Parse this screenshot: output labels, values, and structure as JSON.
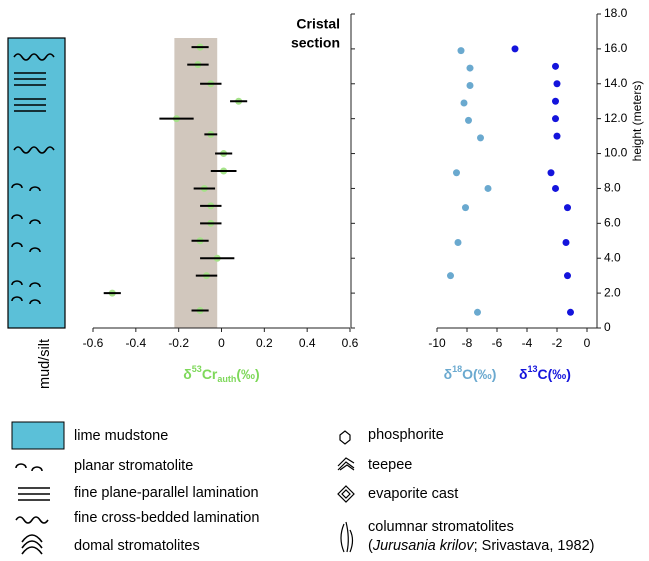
{
  "chart_data": [
    {
      "type": "scatter",
      "title_lines": [
        "Cristal",
        "section"
      ],
      "xlabel_parts": [
        "δ",
        "53",
        "Cr",
        "auth",
        "(‰)"
      ],
      "xlabel_color": "#7ed85a",
      "x": [
        -0.1,
        -0.11,
        -0.05,
        0.08,
        -0.21,
        -0.05,
        0.01,
        0.01,
        -0.08,
        -0.05,
        -0.05,
        -0.1,
        -0.02,
        -0.07,
        -0.51,
        -0.1
      ],
      "x_err": [
        0.04,
        0.05,
        0.05,
        0.04,
        0.08,
        0.03,
        0.04,
        0.06,
        0.05,
        0.05,
        0.05,
        0.04,
        0.08,
        0.05,
        0.04,
        0.04
      ],
      "y": [
        16.1,
        15.1,
        14.0,
        13.0,
        12.0,
        11.1,
        10.0,
        9.0,
        8.0,
        7.0,
        6.0,
        5.0,
        4.0,
        3.0,
        2.0,
        1.0
      ],
      "color": "#a6e38a",
      "band": [
        -0.22,
        -0.02
      ],
      "band_color": "#d1c7bd",
      "xlim": [
        -0.6,
        0.6
      ],
      "xticks": [
        -0.6,
        -0.4,
        -0.2,
        0,
        0.2,
        0.4,
        0.6
      ],
      "ylim": [
        0,
        18
      ]
    },
    {
      "type": "scatter",
      "series": [
        {
          "name_parts": [
            "δ",
            "18",
            "O(‰)"
          ],
          "color": "#6aa9cf",
          "x": [
            -8.4,
            -7.8,
            -7.8,
            -8.2,
            -7.9,
            -7.1,
            -8.7,
            -6.6,
            -8.1,
            -8.6,
            -9.1,
            -7.3
          ],
          "y": [
            15.9,
            14.9,
            13.9,
            12.9,
            11.9,
            10.9,
            8.9,
            8.0,
            6.9,
            4.9,
            3.0,
            0.9
          ]
        },
        {
          "name_parts": [
            "δ",
            "13",
            "C(‰)"
          ],
          "color": "#1414dc",
          "x": [
            -4.8,
            -2.1,
            -2.0,
            -2.1,
            -2.1,
            -2.0,
            -2.4,
            -2.1,
            -1.3,
            -1.4,
            -1.3,
            -1.1
          ],
          "y": [
            16.0,
            15.0,
            14.0,
            13.0,
            12.0,
            11.0,
            8.9,
            8.0,
            6.9,
            4.9,
            3.0,
            0.9
          ]
        }
      ],
      "xlim": [
        -10,
        0
      ],
      "xticks": [
        -10,
        -8,
        -6,
        -4,
        -2,
        0
      ],
      "ylim": [
        0,
        18
      ],
      "yticks": [
        0,
        {
          "value": 2,
          "label": "2.0"
        },
        {
          "value": 4,
          "label": "4.0"
        },
        {
          "value": 6,
          "label": "6.0"
        },
        {
          "value": 8,
          "label": "8.0"
        },
        {
          "value": 10,
          "label": "10.0"
        },
        {
          "value": 12,
          "label": "12.0"
        },
        {
          "value": 14,
          "label": "14.0"
        },
        {
          "value": 16,
          "label": "16.0"
        },
        {
          "value": 18,
          "label": "18.0"
        }
      ],
      "ylabel": "height (meters)"
    }
  ],
  "column": {
    "label": "mud/silt",
    "color": "#5bc0d8"
  },
  "legend": {
    "left": [
      "lime mudstone",
      "planar stromatolite",
      "fine plane-parallel lamination",
      "fine cross-bedded lamination",
      "domal stromatolites"
    ],
    "right": [
      "phosphorite",
      "teepee",
      "evaporite cast",
      "columnar stromatolites"
    ],
    "ref_parts": [
      "(",
      "Jurusania krilov",
      "; Srivastava, 1982)"
    ]
  }
}
